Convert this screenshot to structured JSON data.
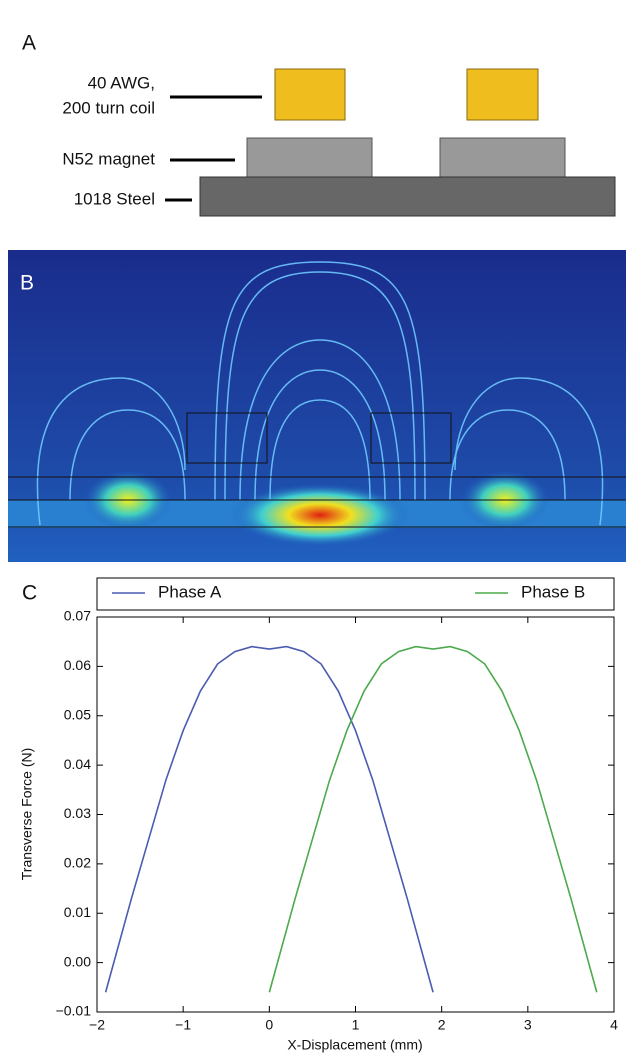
{
  "panel_a": {
    "label": "A",
    "coil_label": [
      "40 AWG,",
      "200 turn coil"
    ],
    "magnet_label": "N52 magnet",
    "steel_label": "1018 Steel"
  },
  "panel_b": {
    "label": "B"
  },
  "chart_data": {
    "type": "line",
    "panel_label": "C",
    "x_label": "X-Displacement (mm)",
    "y_label": "Transverse Force (N)",
    "xlim": [
      -2,
      4
    ],
    "ylim": [
      -0.01,
      0.07
    ],
    "xticks": [
      {
        "value": -2,
        "label": "−2"
      },
      {
        "value": -1,
        "label": "−1"
      },
      0,
      1,
      2,
      3,
      4
    ],
    "yticks": [
      {
        "value": -0.01,
        "label": "−0.01"
      },
      {
        "value": 0,
        "label": "0.00"
      },
      0.01,
      0.02,
      0.03,
      0.04,
      0.05,
      0.06,
      0.07
    ],
    "legend": "top",
    "series": [
      {
        "name": "Phase A",
        "color": "#4b5cb0",
        "x": [
          -1.9,
          -1.6,
          -1.4,
          -1.2,
          -1.0,
          -0.8,
          -0.6,
          -0.4,
          -0.2,
          0,
          0.2,
          0.4,
          0.6,
          0.8,
          1.0,
          1.2,
          1.4,
          1.6,
          1.9
        ],
        "values": [
          -0.006,
          0.013,
          0.025,
          0.037,
          0.047,
          0.055,
          0.0605,
          0.063,
          0.064,
          0.0635,
          0.064,
          0.063,
          0.0605,
          0.055,
          0.047,
          0.037,
          0.025,
          0.013,
          -0.006
        ]
      },
      {
        "name": "Phase B",
        "color": "#4caa4c",
        "x": [
          0,
          0.3,
          0.5,
          0.7,
          0.9,
          1.1,
          1.3,
          1.5,
          1.7,
          1.9,
          2.1,
          2.3,
          2.5,
          2.7,
          2.9,
          3.1,
          3.3,
          3.5,
          3.8
        ],
        "values": [
          -0.006,
          0.013,
          0.025,
          0.037,
          0.047,
          0.055,
          0.0605,
          0.063,
          0.064,
          0.0635,
          0.064,
          0.063,
          0.0605,
          0.055,
          0.047,
          0.037,
          0.025,
          0.013,
          -0.006
        ]
      }
    ]
  }
}
